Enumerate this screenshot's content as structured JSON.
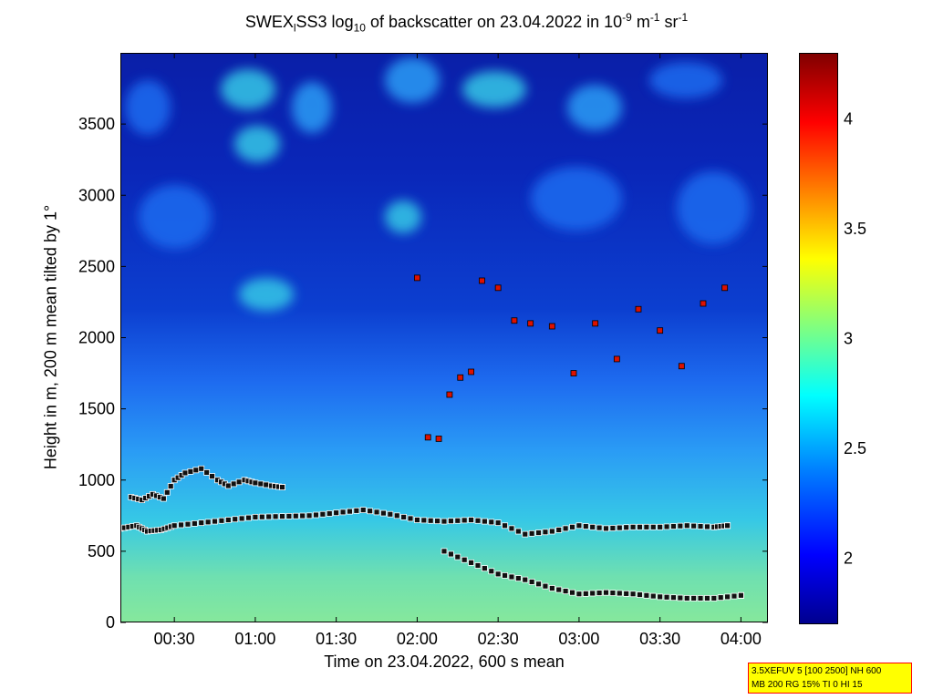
{
  "chart_data": {
    "type": "heatmap",
    "title": {
      "prefix": "SWEX",
      "sub1": "l",
      "mid1": "SS3 log",
      "sub2": "10",
      "mid2": " of backscatter on 23.04.2022 in 10",
      "sup1": "-9",
      "mid3": " m",
      "sup2": "-1",
      "mid4": " sr",
      "sup3": "-1"
    },
    "xlabel": "Time on 23.04.2022, 600 s mean",
    "ylabel": "Height in m, 200 m mean tilted by 1°",
    "x_range_min": [
      10,
      130
    ],
    "y_range": [
      0,
      4000
    ],
    "x_ticks": [
      {
        "label": "00:30",
        "min": 30
      },
      {
        "label": "01:00",
        "min": 60
      },
      {
        "label": "01:30",
        "min": 90
      },
      {
        "label": "02:00",
        "min": 120
      },
      {
        "label": "02:30",
        "min": 150
      },
      {
        "label": "03:00",
        "min": 180
      },
      {
        "label": "03:30",
        "min": 210
      },
      {
        "label": "04:00",
        "min": 240
      }
    ],
    "y_ticks": [
      0,
      500,
      1000,
      1500,
      2000,
      2500,
      3000,
      3500
    ],
    "colorbar": {
      "range": [
        1.7,
        4.3
      ],
      "ticks": [
        2,
        2.5,
        3,
        3.5,
        4
      ],
      "tick_labels": [
        "2",
        "2.5",
        "3",
        "3.5",
        "4"
      ],
      "colormap": "jet"
    },
    "layers": {
      "lower_layer": {
        "min": [
          10,
          16,
          20,
          25,
          30,
          40,
          50,
          60,
          70,
          80,
          90,
          100,
          110,
          120,
          130,
          140,
          150,
          160,
          170,
          180,
          190,
          200,
          210,
          220,
          230,
          235
        ],
        "height": [
          660,
          680,
          640,
          650,
          680,
          700,
          720,
          740,
          745,
          750,
          770,
          790,
          760,
          720,
          710,
          720,
          700,
          620,
          640,
          680,
          660,
          670,
          670,
          680,
          670,
          680
        ]
      },
      "upper_layer": {
        "min": [
          14,
          18,
          22,
          26,
          30,
          34,
          40,
          46,
          50,
          56,
          60,
          66,
          70
        ],
        "height": [
          880,
          860,
          900,
          870,
          1000,
          1050,
          1080,
          1000,
          960,
          1000,
          980,
          960,
          950
        ]
      },
      "descending_layer": {
        "min": [
          130,
          140,
          150,
          160,
          170,
          180,
          190,
          200,
          210,
          220,
          230,
          240
        ],
        "height": [
          500,
          420,
          340,
          300,
          240,
          200,
          210,
          200,
          180,
          170,
          170,
          190
        ]
      },
      "elevated_points": {
        "min": [
          120,
          124,
          128,
          132,
          136,
          140,
          144,
          150,
          156,
          162,
          170,
          178,
          186,
          194,
          202,
          210,
          218,
          226,
          234
        ],
        "height": [
          2420,
          1300,
          1290,
          1600,
          1720,
          1760,
          2400,
          2350,
          2120,
          2100,
          2080,
          1750,
          2100,
          1850,
          2200,
          2050,
          1800,
          2240,
          2350
        ]
      }
    }
  },
  "info_box": {
    "line1": "3.5XEFUV 5 [100 2500] NH 600",
    "line2": "MB 200 RG 15% TI 0 HI 15"
  }
}
